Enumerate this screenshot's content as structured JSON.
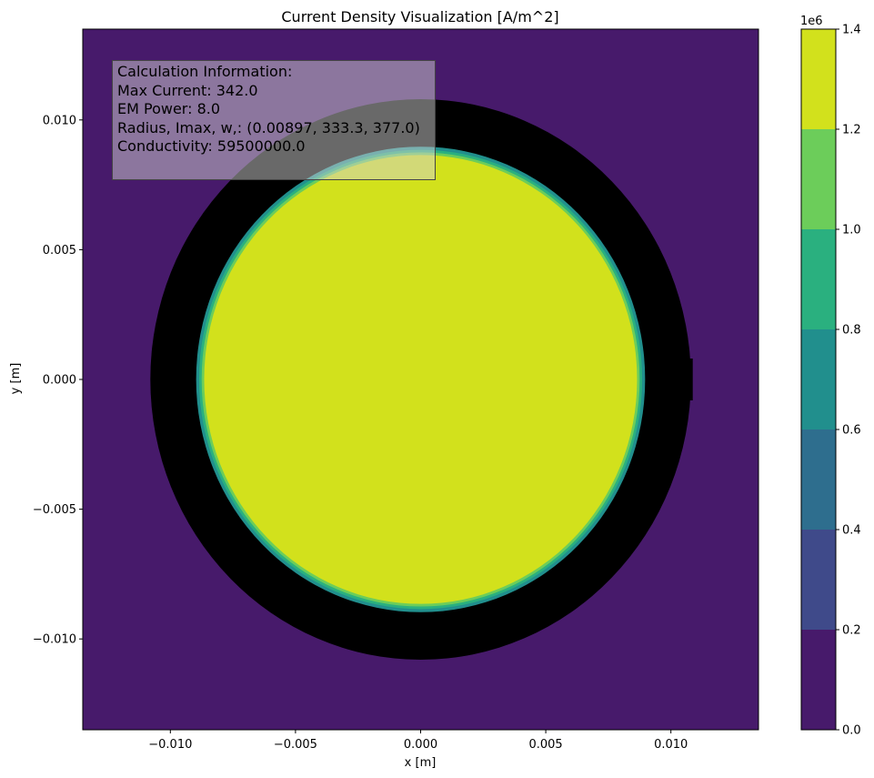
{
  "chart_data": {
    "type": "heatmap",
    "title": "Current Density Visualization [A/m^2]",
    "xlabel": "x [m]",
    "ylabel": "y [m]",
    "xlim": [
      -0.0135,
      0.0135
    ],
    "ylim": [
      -0.0135,
      0.0135
    ],
    "x_ticks": [
      -0.01,
      -0.005,
      0.0,
      0.005,
      0.01
    ],
    "x_tick_labels": [
      "−0.010",
      "−0.005",
      "0.000",
      "0.005",
      "0.010"
    ],
    "y_ticks": [
      -0.01,
      -0.005,
      0.0,
      0.005,
      0.01
    ],
    "y_tick_labels": [
      "−0.010",
      "−0.005",
      "0.000",
      "0.005",
      "0.010"
    ],
    "grid": false,
    "background_level_range": [
      0.0,
      0.2
    ],
    "conductor": {
      "center": [
        0.0,
        0.0
      ],
      "radius": 0.00897,
      "level_range": [
        1.2,
        1.4
      ],
      "edge_levels": [
        [
          0.6,
          0.8
        ],
        [
          0.8,
          1.0
        ],
        [
          1.0,
          1.2
        ]
      ]
    },
    "shield_ring": {
      "center": [
        0.0,
        0.0
      ],
      "inner_radius": 0.0091,
      "outer_radius": 0.0108,
      "color": "#000000"
    },
    "colorbar": {
      "levels": [
        0.0,
        0.2,
        0.4,
        0.6,
        0.8,
        1.0,
        1.2,
        1.4
      ],
      "tick_labels": [
        "0.0",
        "0.2",
        "0.4",
        "0.6",
        "0.8",
        "1.0",
        "1.2",
        "1.4"
      ],
      "multiplier_label": "1e6",
      "colors": [
        "#471a6b",
        "#3f4a8a",
        "#2e6e8e",
        "#218f8d",
        "#2ab07f",
        "#6ccd5a",
        "#d2e11c"
      ]
    },
    "annotation": {
      "lines": [
        "Calculation Information:",
        "Max Current: 342.0",
        "EM Power: 8.0",
        "Radius, Imax, w,: (0.00897, 333.3, 377.0)",
        "Conductivity: 59500000.0"
      ]
    }
  }
}
